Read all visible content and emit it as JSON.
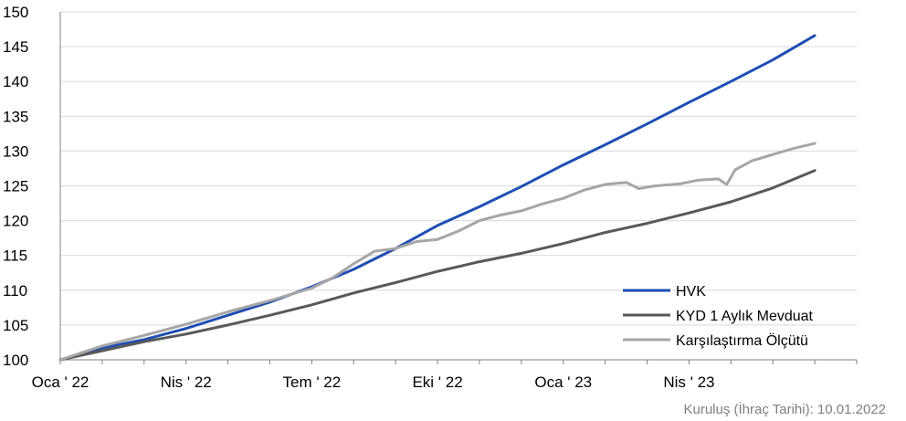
{
  "chart_data": {
    "type": "line",
    "x_labels": [
      "Oca ' 22",
      "Nis ' 22",
      "Tem ' 22",
      "Eki ' 22",
      "Oca ' 23",
      "Nis ' 23"
    ],
    "y_ticks": [
      "100",
      "105",
      "110",
      "115",
      "120",
      "125",
      "130",
      "135",
      "140",
      "145",
      "150"
    ],
    "ylim": [
      100,
      150
    ],
    "x_range_months": [
      0,
      19
    ],
    "grid": true,
    "legend_position": "bottom-right",
    "series": [
      {
        "name": "HVK",
        "color": "#1f4eb4",
        "points": [
          [
            0,
            100
          ],
          [
            1,
            101.7
          ],
          [
            2,
            102.9
          ],
          [
            3,
            104.5
          ],
          [
            4,
            106.4
          ],
          [
            5,
            108.3
          ],
          [
            6,
            110.5
          ],
          [
            7,
            113.0
          ],
          [
            8,
            116.0
          ],
          [
            9,
            119.3
          ],
          [
            10,
            122.0
          ],
          [
            11,
            124.9
          ],
          [
            12,
            128.0
          ],
          [
            13,
            130.9
          ],
          [
            14,
            133.9
          ],
          [
            15,
            137.0
          ],
          [
            16,
            140.0
          ],
          [
            17,
            143.1
          ],
          [
            18,
            146.6
          ]
        ]
      },
      {
        "name": "KYD 1 Aylık Mevduat",
        "color": "#595959",
        "points": [
          [
            0,
            100
          ],
          [
            1,
            101.3
          ],
          [
            2,
            102.6
          ],
          [
            3,
            103.7
          ],
          [
            4,
            105.0
          ],
          [
            5,
            106.4
          ],
          [
            6,
            107.9
          ],
          [
            7,
            109.6
          ],
          [
            8,
            111.1
          ],
          [
            9,
            112.7
          ],
          [
            10,
            114.1
          ],
          [
            11,
            115.3
          ],
          [
            12,
            116.7
          ],
          [
            13,
            118.3
          ],
          [
            14,
            119.6
          ],
          [
            15,
            121.1
          ],
          [
            16,
            122.7
          ],
          [
            17,
            124.7
          ],
          [
            18,
            127.2
          ]
        ]
      },
      {
        "name": "Karşılaştırma Ölçütü",
        "color": "#a6a6a6",
        "points": [
          [
            0,
            100
          ],
          [
            0.5,
            101.0
          ],
          [
            1,
            102.0
          ],
          [
            2,
            103.5
          ],
          [
            3,
            105.1
          ],
          [
            4,
            106.9
          ],
          [
            5,
            108.5
          ],
          [
            6,
            110.3
          ],
          [
            6.5,
            111.8
          ],
          [
            7,
            113.8
          ],
          [
            7.5,
            115.6
          ],
          [
            8,
            116.0
          ],
          [
            8.5,
            117.0
          ],
          [
            9,
            117.3
          ],
          [
            9.5,
            118.5
          ],
          [
            10,
            120.0
          ],
          [
            10.5,
            120.8
          ],
          [
            11,
            121.4
          ],
          [
            11.5,
            122.4
          ],
          [
            12,
            123.2
          ],
          [
            12.5,
            124.4
          ],
          [
            13,
            125.2
          ],
          [
            13.5,
            125.5
          ],
          [
            13.8,
            124.6
          ],
          [
            14.2,
            125.0
          ],
          [
            14.8,
            125.3
          ],
          [
            15.2,
            125.8
          ],
          [
            15.7,
            126.0
          ],
          [
            15.9,
            125.2
          ],
          [
            16.1,
            127.3
          ],
          [
            16.5,
            128.6
          ],
          [
            17,
            129.5
          ],
          [
            17.5,
            130.4
          ],
          [
            18,
            131.1
          ]
        ]
      }
    ]
  },
  "footnote": "Kuruluş (İhraç Tarihi): 10.01.2022"
}
